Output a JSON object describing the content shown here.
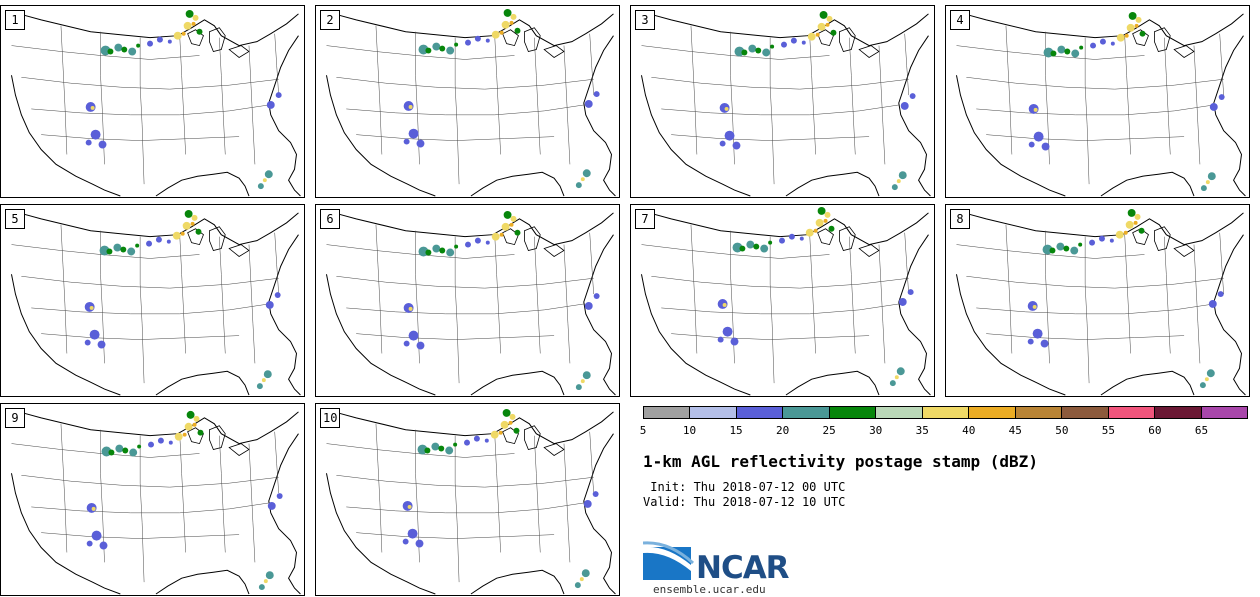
{
  "panels": [
    {
      "label": "1"
    },
    {
      "label": "2"
    },
    {
      "label": "3"
    },
    {
      "label": "4"
    },
    {
      "label": "5"
    },
    {
      "label": "6"
    },
    {
      "label": "7"
    },
    {
      "label": "8"
    },
    {
      "label": "9"
    },
    {
      "label": "10"
    }
  ],
  "colorbar": {
    "colors": [
      "#a0a0a0",
      "#b4bfe8",
      "#5a5fd8",
      "#4a9896",
      "#07860b",
      "#bad8b8",
      "#efd966",
      "#ebac24",
      "#b98435",
      "#8c5a3c",
      "#f1557c",
      "#6b1834",
      "#a846aa"
    ],
    "ticks": [
      "5",
      "10",
      "15",
      "20",
      "25",
      "30",
      "35",
      "40",
      "45",
      "50",
      "55",
      "60",
      "65"
    ]
  },
  "title": "1-km AGL reflectivity postage stamp (dBZ)",
  "init": " Init: Thu 2018-07-12 00 UTC",
  "valid": "Valid: Thu 2018-07-12 10 UTC",
  "logo_text": "NCAR",
  "site": "ensemble.ucar.edu"
}
